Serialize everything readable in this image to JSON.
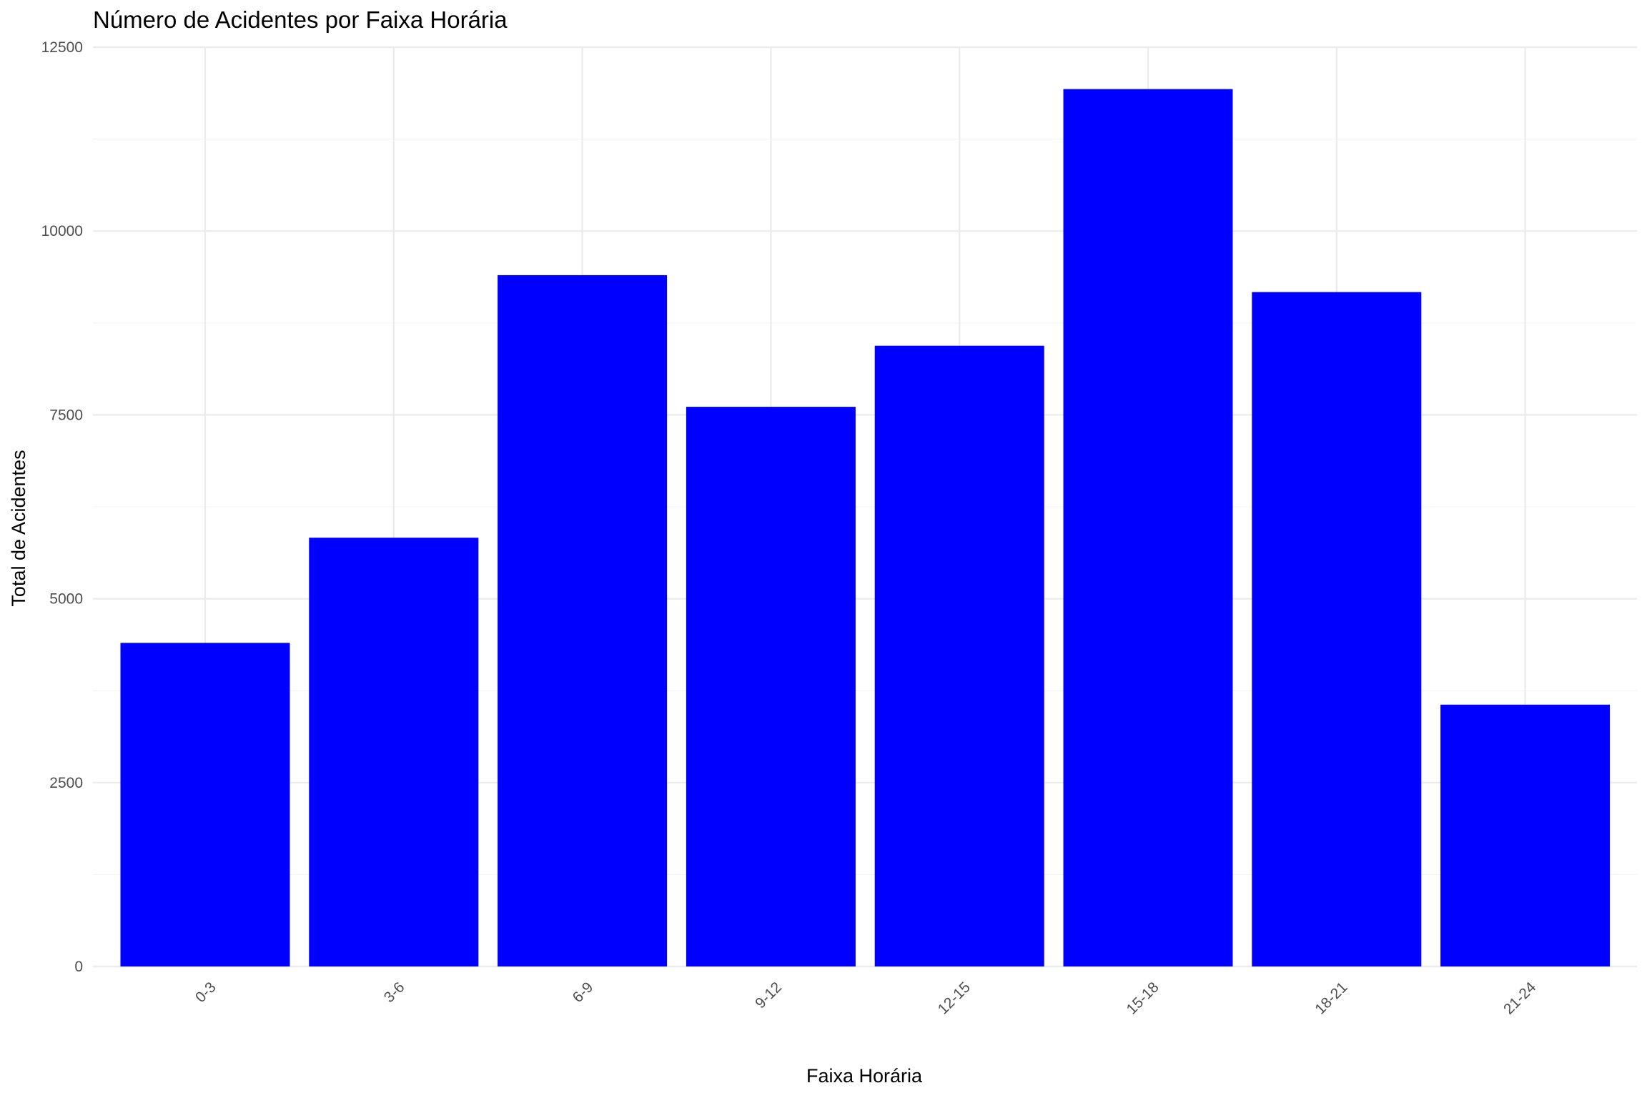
{
  "chart_data": {
    "type": "bar",
    "title": "Número de Acidentes por Faixa Horária",
    "xlabel": "Faixa Horária",
    "ylabel": "Total de Acidentes",
    "categories": [
      "0-3",
      "3-6",
      "6-9",
      "9-12",
      "12-15",
      "15-18",
      "18-21",
      "21-24"
    ],
    "values": [
      4400,
      5830,
      9400,
      7610,
      8440,
      11930,
      9170,
      3560
    ],
    "ylim": [
      0,
      12500
    ],
    "yticks": [
      0,
      2500,
      5000,
      7500,
      10000,
      12500
    ],
    "grid": true,
    "bar_color": "#0000ff",
    "x_tick_rotation_deg": 45
  }
}
